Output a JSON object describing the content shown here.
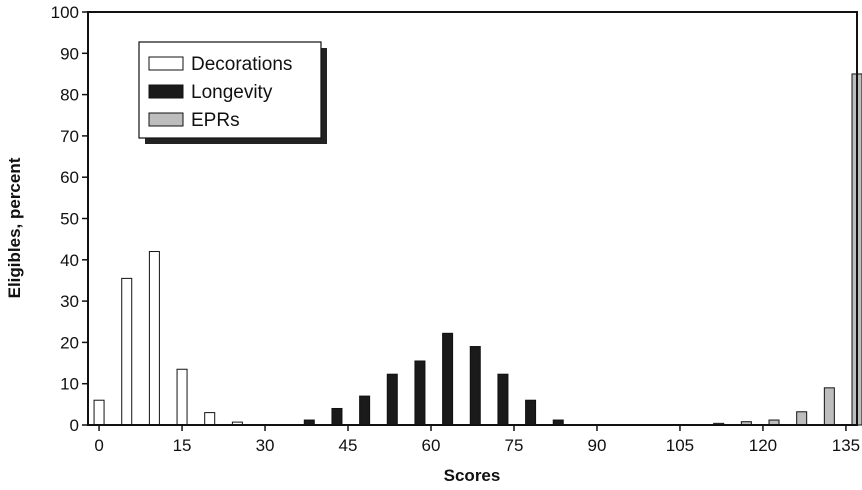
{
  "chart_data": {
    "type": "bar",
    "title": "",
    "xlabel": "Scores",
    "ylabel": "Eligibles, percent",
    "xlim": [
      -2,
      137
    ],
    "ylim": [
      0,
      100
    ],
    "x_ticks": [
      "0",
      "15",
      "30",
      "45",
      "60",
      "75",
      "90",
      "105",
      "120",
      "135"
    ],
    "y_ticks": [
      "0",
      "10",
      "20",
      "30",
      "40",
      "50",
      "60",
      "70",
      "80",
      "90",
      "100"
    ],
    "grid": false,
    "legend_position": "top-left",
    "series": [
      {
        "name": "Decorations",
        "color": "#ffffff",
        "x": [
          0,
          5,
          10,
          15,
          20,
          25
        ],
        "values": [
          6,
          35.5,
          42,
          13.5,
          3,
          0.7
        ]
      },
      {
        "name": "Longevity",
        "color": "#1a1a1a",
        "x": [
          38,
          43,
          48,
          53,
          58,
          63,
          68,
          73,
          78,
          83
        ],
        "values": [
          1.2,
          4,
          7,
          12.3,
          15.5,
          22.2,
          19,
          12.3,
          6,
          1.2
        ]
      },
      {
        "name": "EPRs",
        "color": "#bdbdbd",
        "x": [
          112,
          117,
          122,
          127,
          132,
          137
        ],
        "values": [
          0.4,
          0.8,
          1.2,
          3.2,
          9,
          85
        ]
      }
    ]
  }
}
